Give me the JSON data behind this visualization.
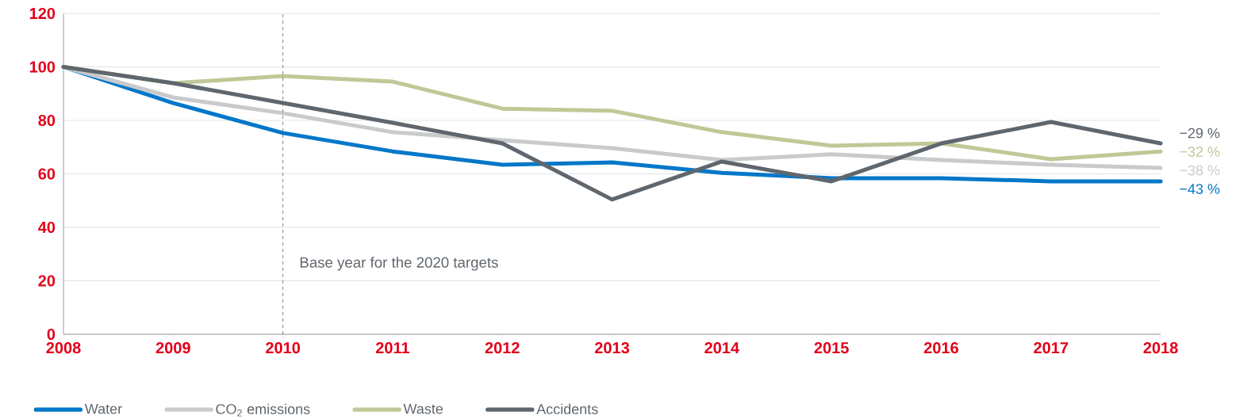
{
  "chart_data": {
    "type": "line",
    "x": [
      2008,
      2009,
      2010,
      2011,
      2012,
      2013,
      2014,
      2015,
      2016,
      2017,
      2018
    ],
    "series": [
      {
        "name": "Water",
        "color": "#0077c8",
        "values": [
          100,
          86.5,
          75.3,
          68.4,
          63.4,
          64.3,
          60.4,
          58.4,
          58.4,
          57.2,
          57.2
        ]
      },
      {
        "name": "CO$_{2}$ emissions",
        "color": "#c8cacc",
        "values": [
          100,
          88.6,
          82.7,
          75.6,
          72.6,
          69.6,
          65.2,
          67.3,
          65.2,
          63.4,
          62.2
        ]
      },
      {
        "name": "Waste",
        "color": "#bfc896",
        "values": [
          100,
          93.9,
          96.6,
          94.5,
          84.4,
          83.6,
          75.6,
          70.5,
          71.4,
          65.5,
          68.4
        ]
      },
      {
        "name": "Accidents",
        "color": "#5f666d",
        "values": [
          100,
          93.9,
          86.5,
          79.1,
          71.4,
          50.4,
          64.6,
          57.2,
          71.4,
          79.4,
          71.4
        ]
      }
    ],
    "xlim": [
      2008,
      2018
    ],
    "xticks": [
      2008,
      2009,
      2010,
      2011,
      2012,
      2013,
      2014,
      2015,
      2016,
      2017,
      2018
    ],
    "ylim": [
      0,
      120
    ],
    "yticks": [
      0,
      20,
      40,
      60,
      80,
      100,
      120
    ],
    "grid": "y",
    "legend": "bottom",
    "marker": "none",
    "line_style": "solid",
    "ref_lines": [
      {
        "axis": "x",
        "value": 2010,
        "label": "Base year for the 2020 targets",
        "color": "#5f666d",
        "line_style": "dashed"
      }
    ],
    "annotations": [
      "−29 %",
      "−32 %",
      "−38 %",
      "−43 %"
    ]
  }
}
